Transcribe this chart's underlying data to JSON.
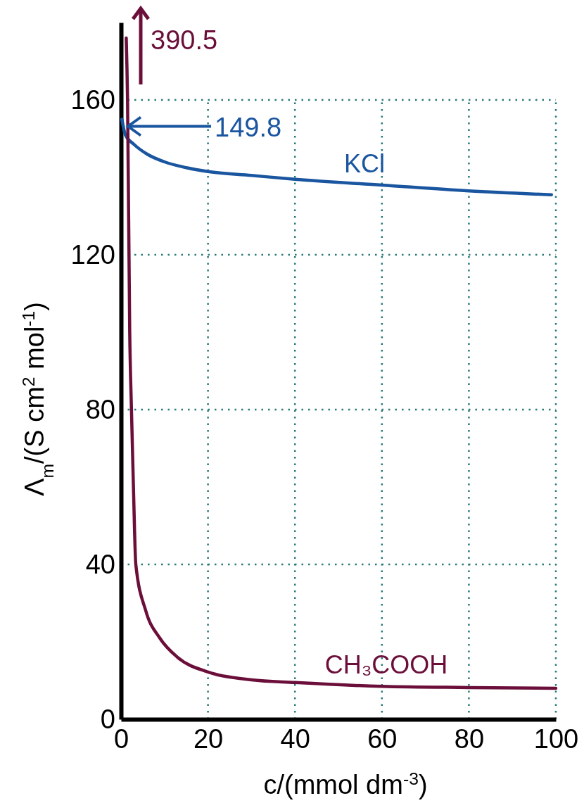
{
  "chart_data": {
    "type": "line",
    "xlabel": "c/(mmol dm$^{-3}$)",
    "ylabel": "Λ$_{m}$/(S cm$^{2}$ mol$^{-1}$)",
    "xlim": [
      0,
      100
    ],
    "xticks": [
      0,
      20,
      40,
      60,
      80,
      100
    ],
    "ylim": [
      0,
      180
    ],
    "yticks": [
      0,
      40,
      80,
      120,
      160
    ],
    "grid": true,
    "line_style": "solid",
    "series": [
      {
        "name": "KCl",
        "color": "#1a55a0",
        "x": [
          0.2,
          1,
          3,
          6,
          10,
          15,
          20,
          30,
          40,
          60,
          80,
          99
        ],
        "values": [
          155,
          151,
          148.5,
          146,
          144,
          142.5,
          141.5,
          140.5,
          139.5,
          138,
          136.5,
          135.5
        ]
      },
      {
        "name": "CH₃COOH",
        "color": "#6b0f3a",
        "x": [
          1.2,
          1.5,
          2,
          2.4,
          2.9,
          3.4,
          5.7,
          8.9,
          13,
          20,
          30,
          40,
          60,
          80,
          100
        ],
        "values": [
          176,
          160,
          100,
          80,
          58,
          40,
          28,
          21,
          16,
          12.2,
          10.2,
          9.5,
          8.5,
          8.2,
          8
        ]
      }
    ],
    "annotations": [
      "390.5",
      "149.8"
    ]
  }
}
